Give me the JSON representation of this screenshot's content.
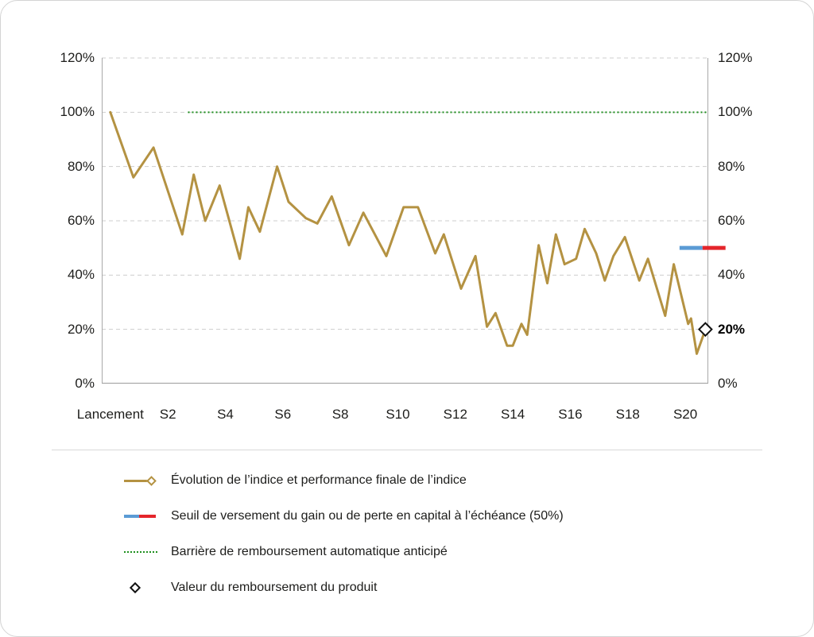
{
  "chart_data": {
    "type": "line",
    "x_domain": [
      -0.3,
      20.8
    ],
    "y_domain": [
      0,
      120
    ],
    "y_ticks": [
      0,
      20,
      40,
      60,
      80,
      100,
      120
    ],
    "y_tick_suffix": "%",
    "x_ticks": [
      {
        "value": 0,
        "label": "Lancement"
      },
      {
        "value": 2,
        "label": "S2"
      },
      {
        "value": 4,
        "label": "S4"
      },
      {
        "value": 6,
        "label": "S6"
      },
      {
        "value": 8,
        "label": "S8"
      },
      {
        "value": 10,
        "label": "S10"
      },
      {
        "value": 12,
        "label": "S12"
      },
      {
        "value": 14,
        "label": "S14"
      },
      {
        "value": 16,
        "label": "S16"
      },
      {
        "value": 18,
        "label": "S18"
      },
      {
        "value": 20,
        "label": "S20"
      }
    ],
    "grid": "horizontal-dashed",
    "series": [
      {
        "name": "Évolution de l’indice et performance finale de l’indice",
        "color": "#b49242",
        "points": [
          [
            0,
            100
          ],
          [
            0.8,
            76
          ],
          [
            1.5,
            87
          ],
          [
            2.5,
            55
          ],
          [
            2.9,
            77
          ],
          [
            3.3,
            60
          ],
          [
            3.8,
            73
          ],
          [
            4.5,
            46
          ],
          [
            4.8,
            65
          ],
          [
            5.2,
            56
          ],
          [
            5.8,
            80
          ],
          [
            6.2,
            67
          ],
          [
            6.6,
            63
          ],
          [
            6.8,
            61
          ],
          [
            7.2,
            59
          ],
          [
            7.7,
            69
          ],
          [
            8.3,
            51
          ],
          [
            8.8,
            63
          ],
          [
            9.6,
            47
          ],
          [
            10.2,
            65
          ],
          [
            10.7,
            65
          ],
          [
            11.3,
            48
          ],
          [
            11.6,
            55
          ],
          [
            12.2,
            35
          ],
          [
            12.7,
            47
          ],
          [
            13.1,
            21
          ],
          [
            13.4,
            26
          ],
          [
            13.8,
            14
          ],
          [
            14,
            14
          ],
          [
            14.3,
            22
          ],
          [
            14.5,
            18
          ],
          [
            14.9,
            51
          ],
          [
            15.2,
            37
          ],
          [
            15.5,
            55
          ],
          [
            15.8,
            44
          ],
          [
            16.2,
            46
          ],
          [
            16.5,
            57
          ],
          [
            16.9,
            48
          ],
          [
            17.2,
            38
          ],
          [
            17.5,
            47
          ],
          [
            17.9,
            54
          ],
          [
            18.4,
            38
          ],
          [
            18.7,
            46
          ],
          [
            19.3,
            25
          ],
          [
            19.6,
            44
          ],
          [
            20.1,
            22
          ],
          [
            20.2,
            24
          ],
          [
            20.4,
            11
          ],
          [
            20.7,
            20
          ]
        ]
      }
    ],
    "barrier_line": {
      "name": "Barrière de remboursement automatique anticipé",
      "y": 100,
      "x_start": 2.7,
      "x_end": 20.8,
      "color": "#1f8f1f",
      "style": "dotted"
    },
    "threshold_line": {
      "name": "Seuil de versement du gain ou de perte en capital à l’échéance",
      "y": 50,
      "segments": [
        {
          "color": "#5b9bd5",
          "x_start": 19.8,
          "x_end": 20.6
        },
        {
          "color": "#e4252b",
          "x_start": 20.6,
          "x_end": 21.4
        }
      ]
    },
    "final_value": {
      "x": 20.7,
      "y": 20,
      "label": "20%"
    }
  },
  "legend": {
    "items": [
      {
        "swatch": "index-line",
        "label": "Évolution de l’indice et performance finale de l’indice"
      },
      {
        "swatch": "threshold-line",
        "label": "Seuil de versement du gain ou de perte en capital à l’échéance (50%)"
      },
      {
        "swatch": "barrier-line",
        "label": "Barrière de remboursement automatique anticipé"
      },
      {
        "swatch": "product-value-diamond",
        "label": "Valeur du remboursement du produit"
      }
    ]
  },
  "colors": {
    "index_line": "#b49242",
    "barrier_line": "#1f8f1f",
    "threshold_blue": "#5b9bd5",
    "threshold_red": "#e4252b",
    "text": "#1d1d1b",
    "grid": "#cdcdcd",
    "axis": "#a9a9a9"
  }
}
